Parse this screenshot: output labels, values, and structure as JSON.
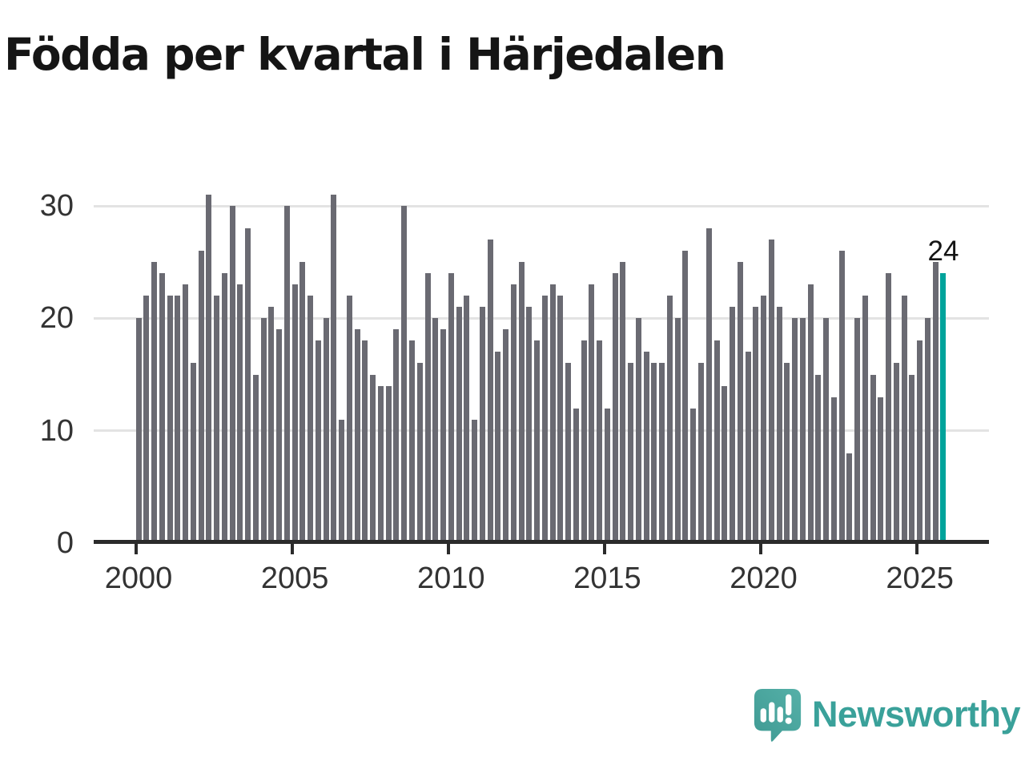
{
  "title": "Födda per kvartal i Härjedalen",
  "chart_data": {
    "type": "bar",
    "title": "Födda per kvartal i Härjedalen",
    "xlabel": "",
    "ylabel": "",
    "x_unit": "quarter",
    "start_year": 2000,
    "quarters_per_year": 4,
    "values": [
      20,
      22,
      25,
      24,
      22,
      22,
      23,
      16,
      26,
      31,
      22,
      24,
      30,
      23,
      28,
      15,
      20,
      21,
      19,
      30,
      23,
      25,
      22,
      18,
      20,
      31,
      11,
      22,
      19,
      18,
      15,
      14,
      14,
      19,
      30,
      18,
      16,
      24,
      20,
      19,
      24,
      21,
      22,
      11,
      21,
      27,
      17,
      19,
      23,
      25,
      21,
      18,
      22,
      23,
      22,
      16,
      12,
      18,
      23,
      18,
      12,
      24,
      25,
      16,
      20,
      17,
      16,
      16,
      22,
      20,
      26,
      12,
      16,
      28,
      18,
      14,
      21,
      25,
      17,
      21,
      22,
      27,
      21,
      16,
      20,
      20,
      23,
      15,
      20,
      13,
      26,
      8,
      20,
      22,
      15,
      13,
      24,
      16,
      22,
      15,
      18,
      20,
      25,
      24
    ],
    "highlight_index": 103,
    "highlight_label": "24",
    "y_ticks": [
      0,
      10,
      20,
      30
    ],
    "x_tick_labels": [
      "2000",
      "2005",
      "2010",
      "2015",
      "2020",
      "2025"
    ],
    "ylim": [
      0,
      31
    ],
    "grid": true,
    "legend": null,
    "bar_color": "#6a6a72",
    "highlight_color": "#00a39b",
    "axis_color": "#2b2b2b",
    "grid_color": "#e3e3e3",
    "label_color": "#333333"
  },
  "footer": {
    "brand": "Newsworthy",
    "logo_icon": "newsworthy-speech-bubble-chart-icon"
  }
}
